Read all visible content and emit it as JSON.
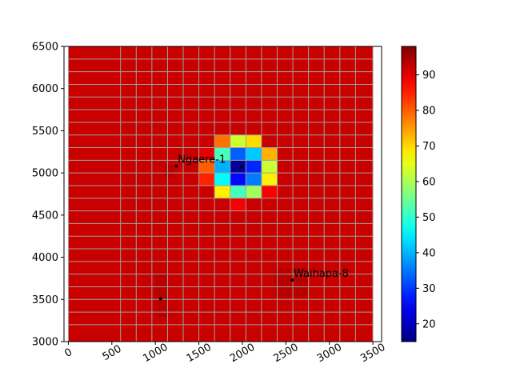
{
  "chart_data": {
    "type": "heatmap",
    "title": "",
    "xlabel": "",
    "ylabel": "",
    "xlim": [
      -50,
      3600
    ],
    "ylim": [
      3000,
      6500
    ],
    "x_ticks": [
      0,
      500,
      1000,
      1500,
      2000,
      2500,
      3000,
      3500
    ],
    "x_tick_labels": [
      "0",
      "500",
      "1000",
      "1500",
      "2000",
      "2500",
      "3000",
      "3500"
    ],
    "y_ticks": [
      3000,
      3500,
      4000,
      4500,
      5000,
      5500,
      6000,
      6500
    ],
    "y_tick_labels": [
      "3000",
      "3500",
      "4000",
      "4500",
      "5000",
      "5500",
      "6000",
      "6500"
    ],
    "x_tick_rotation_deg": -30,
    "grid_x_edges": [
      0,
      600,
      780,
      960,
      1140,
      1320,
      1500,
      1680,
      1860,
      2040,
      2220,
      2400,
      2580,
      2760,
      2940,
      3120,
      3300,
      3500
    ],
    "grid_y_edges": [
      3000,
      3200,
      3350,
      3500,
      3650,
      3800,
      3950,
      4100,
      4250,
      4400,
      4550,
      4700,
      4850,
      5000,
      5150,
      5300,
      5450,
      5600,
      5750,
      5900,
      6050,
      6200,
      6350,
      6500
    ],
    "field": {
      "kind": "radial_drawdown",
      "center": [
        1985,
        5050
      ],
      "min_value": 15,
      "max_value": 92,
      "radius": 440,
      "exponent": 1.6
    },
    "colorbar": {
      "colormap": "jet",
      "vmin": 15,
      "vmax": 98,
      "ticks": [
        20,
        30,
        40,
        50,
        60,
        70,
        80,
        90
      ],
      "tick_labels": [
        "20",
        "30",
        "40",
        "50",
        "60",
        "70",
        "80",
        "90"
      ]
    },
    "wells": [
      {
        "label": "Ngaere-1",
        "x": 1240,
        "y": 5080
      },
      {
        "label": "Waihapa-8",
        "x": 2570,
        "y": 3730
      },
      {
        "label": "",
        "x": 1060,
        "y": 3510
      },
      {
        "label": "",
        "x": 1985,
        "y": 5070
      }
    ],
    "colors": {
      "grid_line": "#a0a0a0",
      "background_value_color": "#cc0000",
      "shade_color": "#aa0000"
    }
  }
}
